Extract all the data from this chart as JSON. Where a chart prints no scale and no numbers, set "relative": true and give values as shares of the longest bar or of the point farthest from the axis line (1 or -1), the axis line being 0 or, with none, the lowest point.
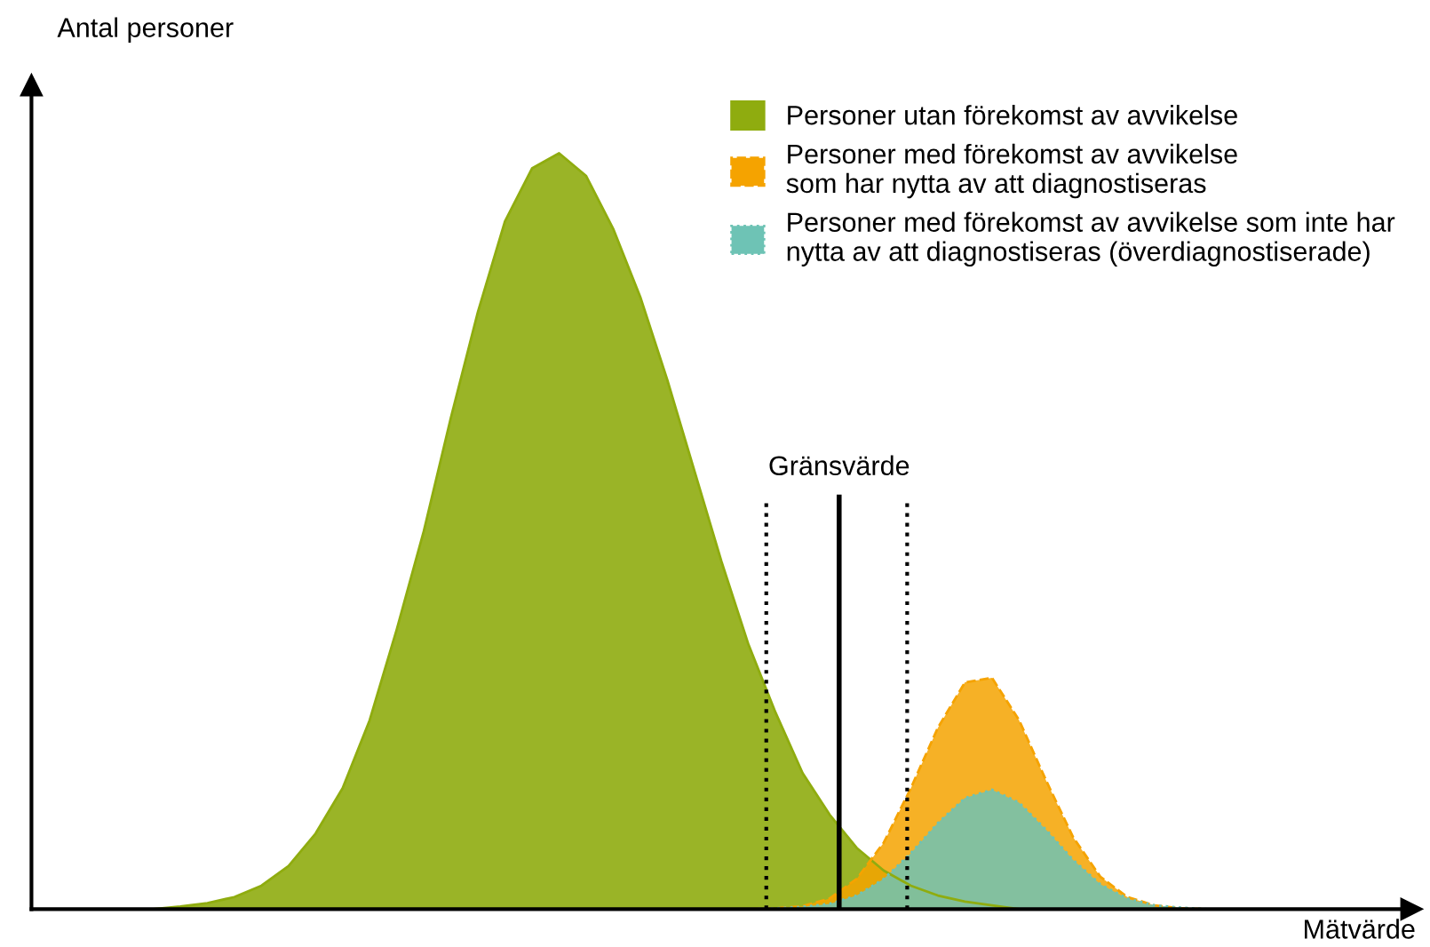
{
  "chart_data": {
    "type": "area",
    "relative": true,
    "xlabel": "Mätvärde",
    "ylabel": "Antal personer",
    "annotations": [
      "Gränsvärde"
    ],
    "grid": false,
    "legend": "top right",
    "categories": [
      null,
      null,
      null,
      null,
      null,
      null,
      null,
      null,
      null,
      null,
      null,
      null,
      null,
      null,
      null,
      null,
      null,
      null,
      null,
      null,
      null,
      null,
      null,
      null,
      null,
      null,
      null,
      null,
      null,
      null,
      null,
      null,
      null,
      null,
      null,
      null,
      null,
      null,
      null,
      null,
      null,
      null,
      null,
      null,
      null,
      null,
      null,
      null,
      null,
      null,
      null
    ],
    "series": [
      {
        "name": "Personer utan förekomst av avvikelse",
        "color": "#8fac0f",
        "line_style": "solid",
        "values": [
          0,
          0,
          0,
          0,
          0,
          0.0035,
          0.008,
          0.016,
          0.031,
          0.057,
          0.1,
          0.16,
          0.25,
          0.37,
          0.5,
          0.65,
          0.79,
          0.91,
          0.98,
          1,
          0.97,
          0.9,
          0.81,
          0.7,
          0.58,
          0.46,
          0.35,
          0.26,
          0.18,
          0.125,
          0.081,
          0.051,
          0.031,
          0.018,
          0.01,
          0.005,
          0,
          0,
          0,
          0,
          0,
          0,
          0,
          0,
          0,
          0,
          0,
          0,
          0,
          0,
          0
        ]
      },
      {
        "name": "Personer med förekomst av avvikelse\nsom har nytta av att diagnostiseras",
        "color": "#f5a300",
        "line_style": "dashed",
        "values": [
          0,
          0,
          0,
          0,
          0,
          0,
          0,
          0,
          0,
          0,
          0,
          0,
          0,
          0,
          0,
          0,
          0,
          0,
          0,
          0,
          0,
          0,
          0,
          0,
          0,
          0,
          0,
          0.001,
          0.004,
          0.014,
          0.04,
          0.088,
          0.16,
          0.24,
          0.3,
          0.306,
          0.25,
          0.17,
          0.095,
          0.043,
          0.016,
          0.005,
          0.001,
          0,
          0,
          0,
          0,
          0,
          0,
          0,
          0
        ]
      },
      {
        "name": "Personer med förekomst av avvikelse som inte har\nnytta av att diagnostiseras (överdiagnostiserade)",
        "color": "#6ec3b5",
        "line_style": "dotted",
        "values": [
          0,
          0,
          0,
          0,
          0,
          0,
          0,
          0,
          0,
          0,
          0,
          0,
          0,
          0,
          0,
          0,
          0,
          0,
          0,
          0,
          0,
          0,
          0,
          0,
          0,
          0,
          0,
          0.001,
          0.003,
          0.007,
          0.018,
          0.04,
          0.074,
          0.114,
          0.147,
          0.158,
          0.141,
          0.105,
          0.065,
          0.033,
          0.014,
          0.005,
          0.002,
          0,
          0,
          0,
          0,
          0,
          0,
          0,
          0
        ]
      }
    ]
  }
}
